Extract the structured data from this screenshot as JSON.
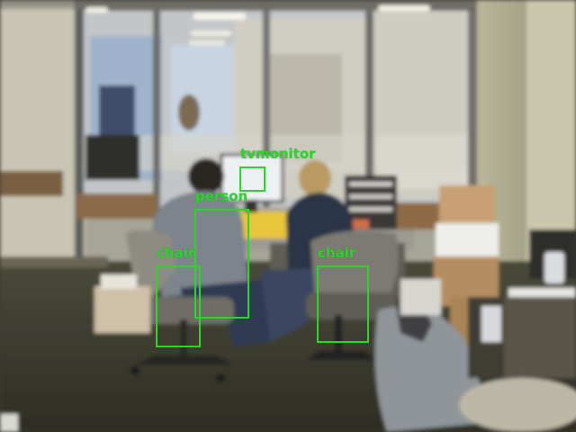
{
  "detections": [
    {
      "label": "tvmonitor",
      "color": "#29d629"
    },
    {
      "label": "person",
      "color": "#29d629"
    },
    {
      "label": "chair",
      "color": "#29d629"
    },
    {
      "label": "chair",
      "color": "#29d629"
    }
  ]
}
